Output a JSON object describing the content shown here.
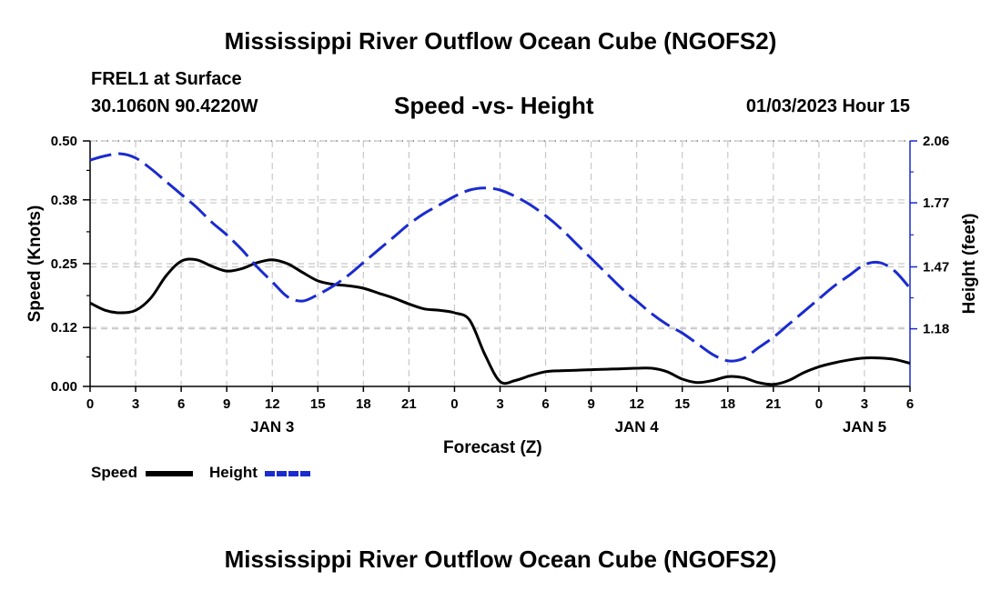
{
  "page": {
    "title": "Mississippi River Outflow Ocean Cube (NGOFS2)",
    "footer_title": "Mississippi River Outflow Ocean Cube (NGOFS2)",
    "station": "FREL1 at Surface",
    "coords": "30.1060N  90.4220W",
    "subtitle": "Speed -vs- Height",
    "timestamp": "01/03/2023 Hour 15"
  },
  "legend": {
    "speed_label": "Speed",
    "height_label": "Height"
  },
  "colors": {
    "speed": "#000000",
    "height": "#1a2bd0",
    "grid": "#c8c8c8"
  },
  "chart_data": {
    "type": "line",
    "xlabel": "Forecast (Z)",
    "ylabel_left": "Speed (Knots)",
    "ylabel_right": "Height (feet)",
    "x_range_hours": [
      0,
      54
    ],
    "x_tick_hours": [
      0,
      3,
      6,
      9,
      12,
      15,
      18,
      21,
      24,
      27,
      30,
      33,
      36,
      39,
      42,
      45,
      48,
      51,
      54
    ],
    "x_tick_labels": [
      "0",
      "3",
      "6",
      "9",
      "12",
      "15",
      "18",
      "21",
      "0",
      "3",
      "6",
      "9",
      "12",
      "15",
      "18",
      "21",
      "0",
      "3",
      "6"
    ],
    "day_labels": [
      {
        "hour": 12,
        "label": "JAN 3"
      },
      {
        "hour": 36,
        "label": "JAN 4"
      },
      {
        "hour": 51,
        "label": "JAN 5"
      }
    ],
    "y_left": {
      "range": [
        0,
        0.5
      ],
      "ticks": [
        0.0,
        0.12,
        0.25,
        0.38,
        0.5
      ],
      "tick_labels": [
        "0.00",
        "0.12",
        "0.25",
        "0.38",
        "0.50"
      ]
    },
    "y_right": {
      "range": [
        0.91,
        2.06
      ],
      "ticks": [
        1.18,
        1.47,
        1.77,
        2.06
      ],
      "tick_labels": [
        "1.18",
        "1.47",
        "1.77",
        "2.06"
      ]
    },
    "series": [
      {
        "name": "Speed",
        "axis": "left",
        "style": "solid",
        "x": [
          0,
          1,
          2,
          3,
          4,
          5,
          6,
          7,
          8,
          9,
          10,
          11,
          12,
          13,
          14,
          15,
          16,
          17,
          18,
          19,
          20,
          21,
          22,
          23,
          24,
          25,
          26,
          27,
          28,
          29,
          30,
          31,
          32,
          33,
          34,
          35,
          36,
          37,
          38,
          39,
          40,
          41,
          42,
          43,
          44,
          45,
          46,
          47,
          48,
          49,
          50,
          51,
          52,
          53,
          54
        ],
        "values": [
          0.17,
          0.155,
          0.15,
          0.155,
          0.18,
          0.225,
          0.255,
          0.258,
          0.245,
          0.235,
          0.24,
          0.252,
          0.258,
          0.25,
          0.232,
          0.215,
          0.208,
          0.205,
          0.2,
          0.19,
          0.18,
          0.168,
          0.158,
          0.155,
          0.15,
          0.135,
          0.065,
          0.01,
          0.012,
          0.022,
          0.03,
          0.032,
          0.033,
          0.034,
          0.035,
          0.036,
          0.037,
          0.037,
          0.03,
          0.015,
          0.008,
          0.012,
          0.02,
          0.018,
          0.008,
          0.004,
          0.012,
          0.028,
          0.04,
          0.048,
          0.054,
          0.058,
          0.058,
          0.055,
          0.047
        ]
      },
      {
        "name": "Height",
        "axis": "right",
        "style": "dashed",
        "x": [
          0,
          1,
          2,
          3,
          4,
          5,
          6,
          7,
          8,
          9,
          10,
          11,
          12,
          13,
          14,
          15,
          16,
          17,
          18,
          19,
          20,
          21,
          22,
          23,
          24,
          25,
          26,
          27,
          28,
          29,
          30,
          31,
          32,
          33,
          34,
          35,
          36,
          37,
          38,
          39,
          40,
          41,
          42,
          43,
          44,
          45,
          46,
          47,
          48,
          49,
          50,
          51,
          52,
          53,
          54
        ],
        "values": [
          1.97,
          1.99,
          2.0,
          1.98,
          1.93,
          1.87,
          1.81,
          1.75,
          1.68,
          1.62,
          1.55,
          1.47,
          1.4,
          1.33,
          1.31,
          1.34,
          1.38,
          1.43,
          1.49,
          1.55,
          1.61,
          1.67,
          1.72,
          1.76,
          1.8,
          1.83,
          1.84,
          1.83,
          1.8,
          1.76,
          1.71,
          1.65,
          1.58,
          1.51,
          1.44,
          1.37,
          1.31,
          1.25,
          1.2,
          1.16,
          1.11,
          1.06,
          1.03,
          1.04,
          1.09,
          1.14,
          1.2,
          1.26,
          1.32,
          1.38,
          1.43,
          1.48,
          1.49,
          1.45,
          1.37
        ]
      }
    ]
  }
}
